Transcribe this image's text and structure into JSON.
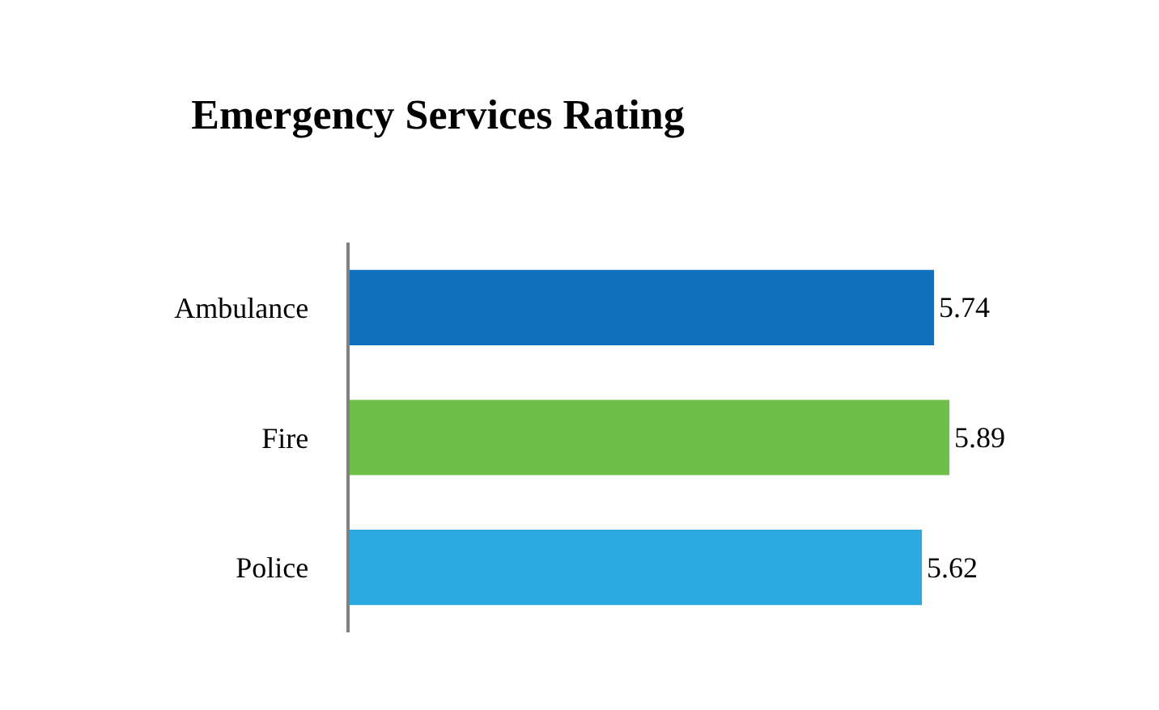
{
  "chart_data": {
    "type": "bar",
    "orientation": "horizontal",
    "title": "Emergency Services Rating",
    "categories": [
      "Ambulance",
      "Fire",
      "Police"
    ],
    "values": [
      5.74,
      5.89,
      5.62
    ],
    "colors": [
      "#1170bb",
      "#6dbf47",
      "#29a9e0"
    ],
    "data_labels": true,
    "tick_labels": "y"
  }
}
